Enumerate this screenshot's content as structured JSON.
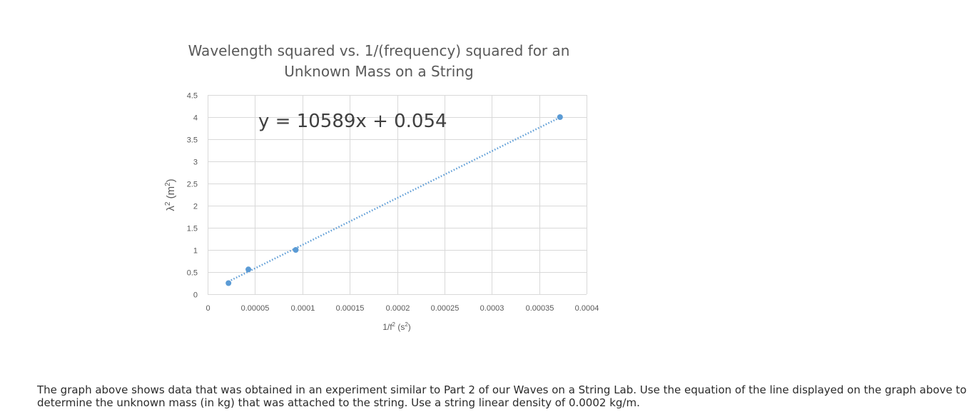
{
  "chart_data": {
    "type": "scatter",
    "title_lines": [
      "Wavelength squared vs. 1/(frequency) squared for an",
      "Unknown Mass on a String"
    ],
    "xlabel_main": "1/f",
    "xlabel_sup": "2",
    "xlabel_unit_open": " (s",
    "xlabel_unit_sup": "2",
    "xlabel_unit_close": ")",
    "ylabel_main": "λ",
    "ylabel_sup": "2",
    "ylabel_unit_open": " (m",
    "ylabel_unit_sup": "2",
    "ylabel_unit_close": ")",
    "xlim": [
      0,
      0.0004
    ],
    "ylim": [
      0,
      4.5
    ],
    "x_ticks": [
      0,
      5e-05,
      0.0001,
      0.00015,
      0.0002,
      0.00025,
      0.0003,
      0.00035,
      0.0004
    ],
    "x_tick_labels": [
      "0",
      "0.00005",
      "0.0001",
      "0.00015",
      "0.0002",
      "0.00025",
      "0.0003",
      "0.00035",
      "0.0004"
    ],
    "y_ticks": [
      0,
      0.5,
      1,
      1.5,
      2,
      2.5,
      3,
      3.5,
      4,
      4.5
    ],
    "y_tick_labels": [
      "0",
      "0.5",
      "1",
      "1.5",
      "2",
      "2.5",
      "3",
      "3.5",
      "4",
      "4.5"
    ],
    "grid": true,
    "points": [
      {
        "x": 2.2e-05,
        "y": 0.25
      },
      {
        "x": 4.3e-05,
        "y": 0.56
      },
      {
        "x": 9.3e-05,
        "y": 1.0
      },
      {
        "x": 0.000372,
        "y": 4.0
      }
    ],
    "trendline": {
      "style": "dotted",
      "slope": 10589,
      "intercept": 0.054,
      "equation_label": "y = 10589x + 0.054"
    },
    "marker_color": "#5b9bd5",
    "grid_color": "#d9d9d9"
  },
  "question_text": "The graph above shows data that was obtained in an experiment similar to Part 2 of our Waves on a String Lab. Use the equation of the line displayed on the graph above to determine the unknown mass (in kg) that was attached to the string. Use a string linear density of 0.0002 kg/m."
}
